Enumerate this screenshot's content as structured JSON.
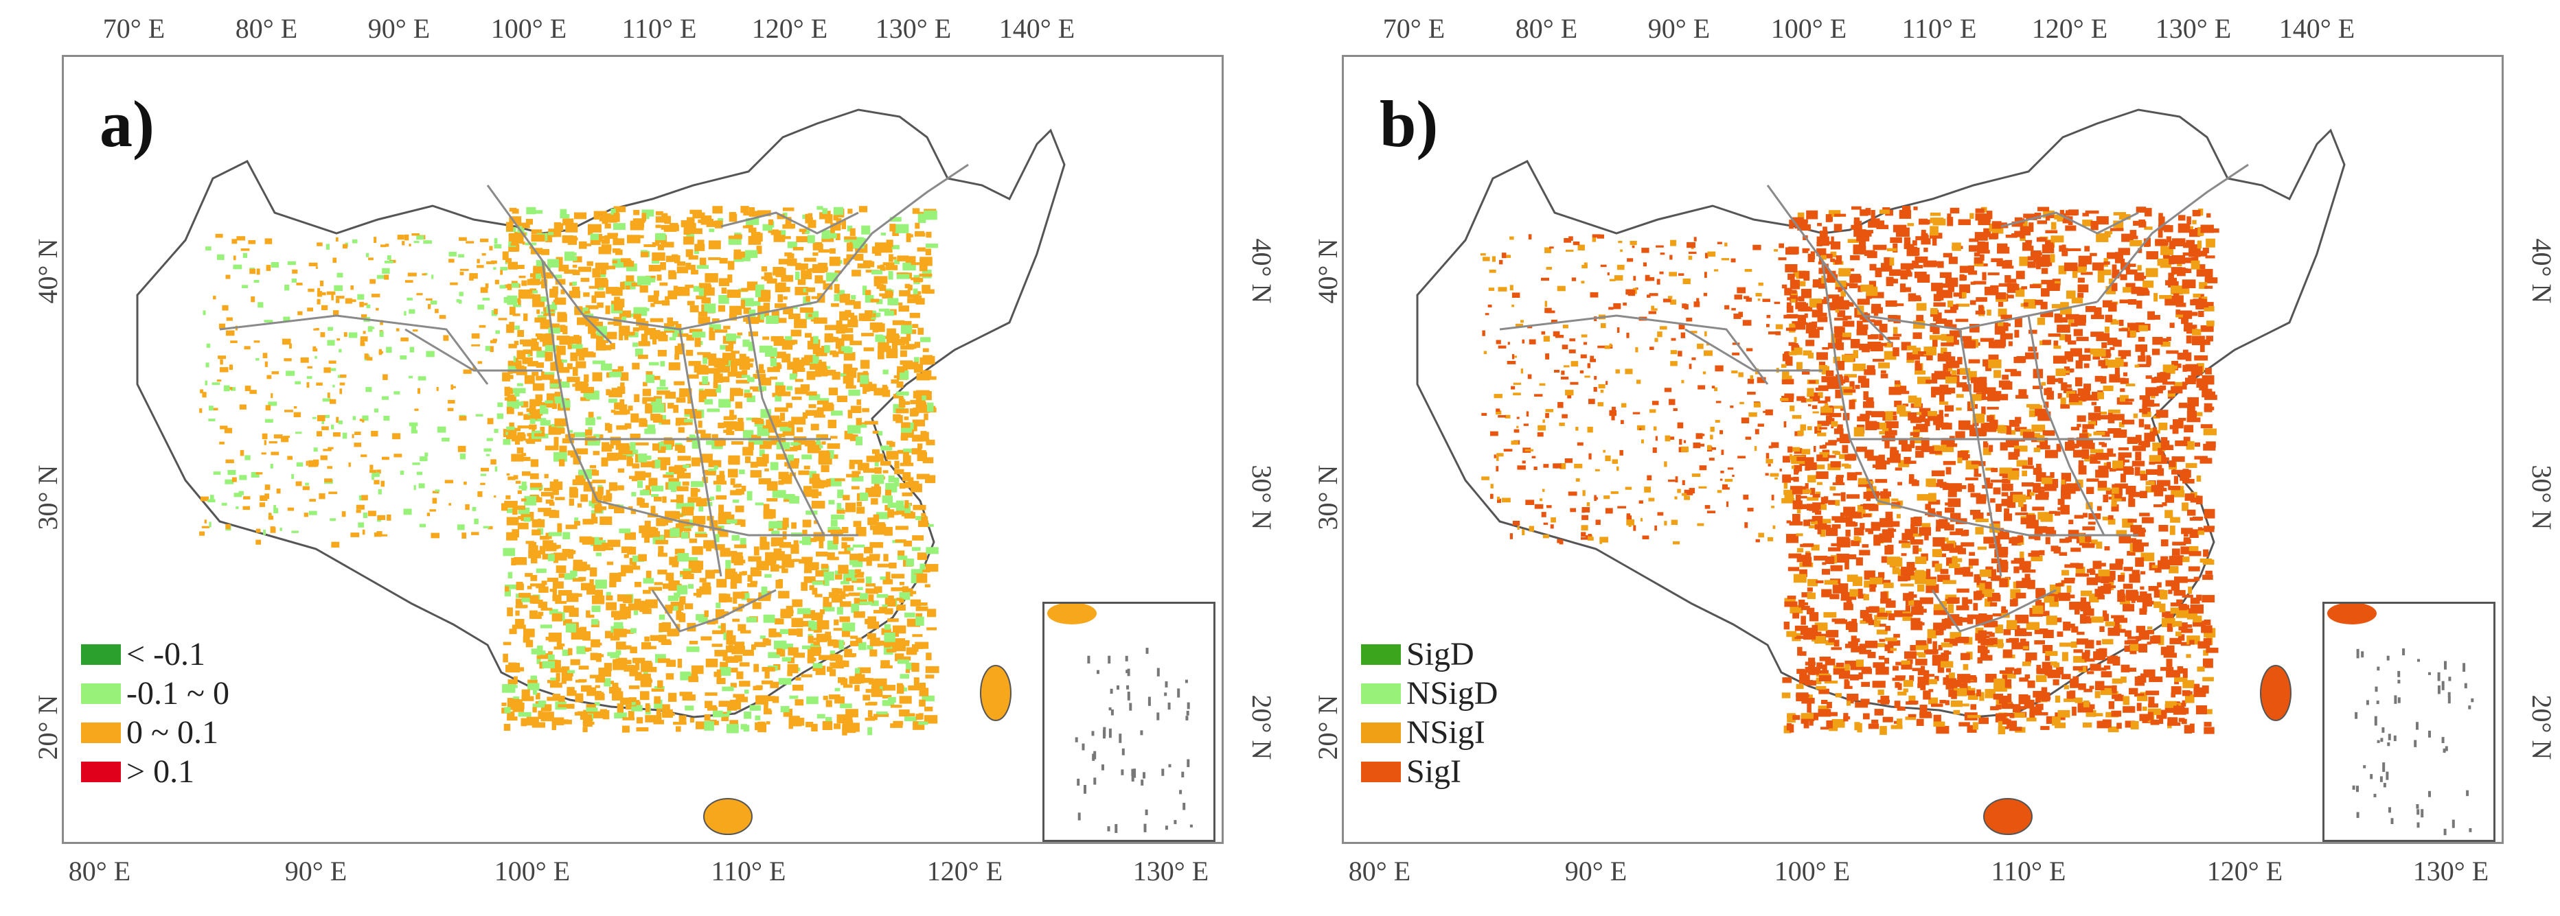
{
  "panels": [
    {
      "label": "a)",
      "top_ticks": [
        "70° E",
        "80° E",
        "90° E",
        "100° E",
        "110° E",
        "120° E",
        "130° E",
        "140° E"
      ],
      "bottom_ticks": [
        "80° E",
        "90° E",
        "100° E",
        "110° E",
        "120° E",
        "130° E"
      ],
      "left_ticks": [
        "40° N",
        "30° N",
        "20° N"
      ],
      "right_ticks": [
        "40° N",
        "30° N",
        "20° N"
      ],
      "legend": [
        {
          "label": "< -0.1",
          "color": "#2ca02c"
        },
        {
          "label": "-0.1 ~ 0",
          "color": "#98f27a"
        },
        {
          "label": "0 ~ 0.1",
          "color": "#f7a71b"
        },
        {
          "label": "> 0.1",
          "color": "#e0001b"
        }
      ],
      "dominant_color": "#f7a71b",
      "secondary_color": "#98f27a"
    },
    {
      "label": "b)",
      "top_ticks": [
        "70° E",
        "80° E",
        "90° E",
        "100° E",
        "110° E",
        "120° E",
        "130° E",
        "140° E"
      ],
      "bottom_ticks": [
        "80° E",
        "90° E",
        "100° E",
        "110° E",
        "120° E",
        "130° E"
      ],
      "left_ticks": [
        "40° N",
        "30° N",
        "20° N"
      ],
      "right_ticks": [
        "40° N",
        "30° N",
        "20° N"
      ],
      "legend": [
        {
          "label": "SigD",
          "color": "#3aa51d"
        },
        {
          "label": "NSigD",
          "color": "#98f27a"
        },
        {
          "label": "NSigI",
          "color": "#f0a014"
        },
        {
          "label": "SigI",
          "color": "#e8550f"
        }
      ],
      "dominant_color": "#e8550f",
      "secondary_color": "#f0a014"
    }
  ]
}
